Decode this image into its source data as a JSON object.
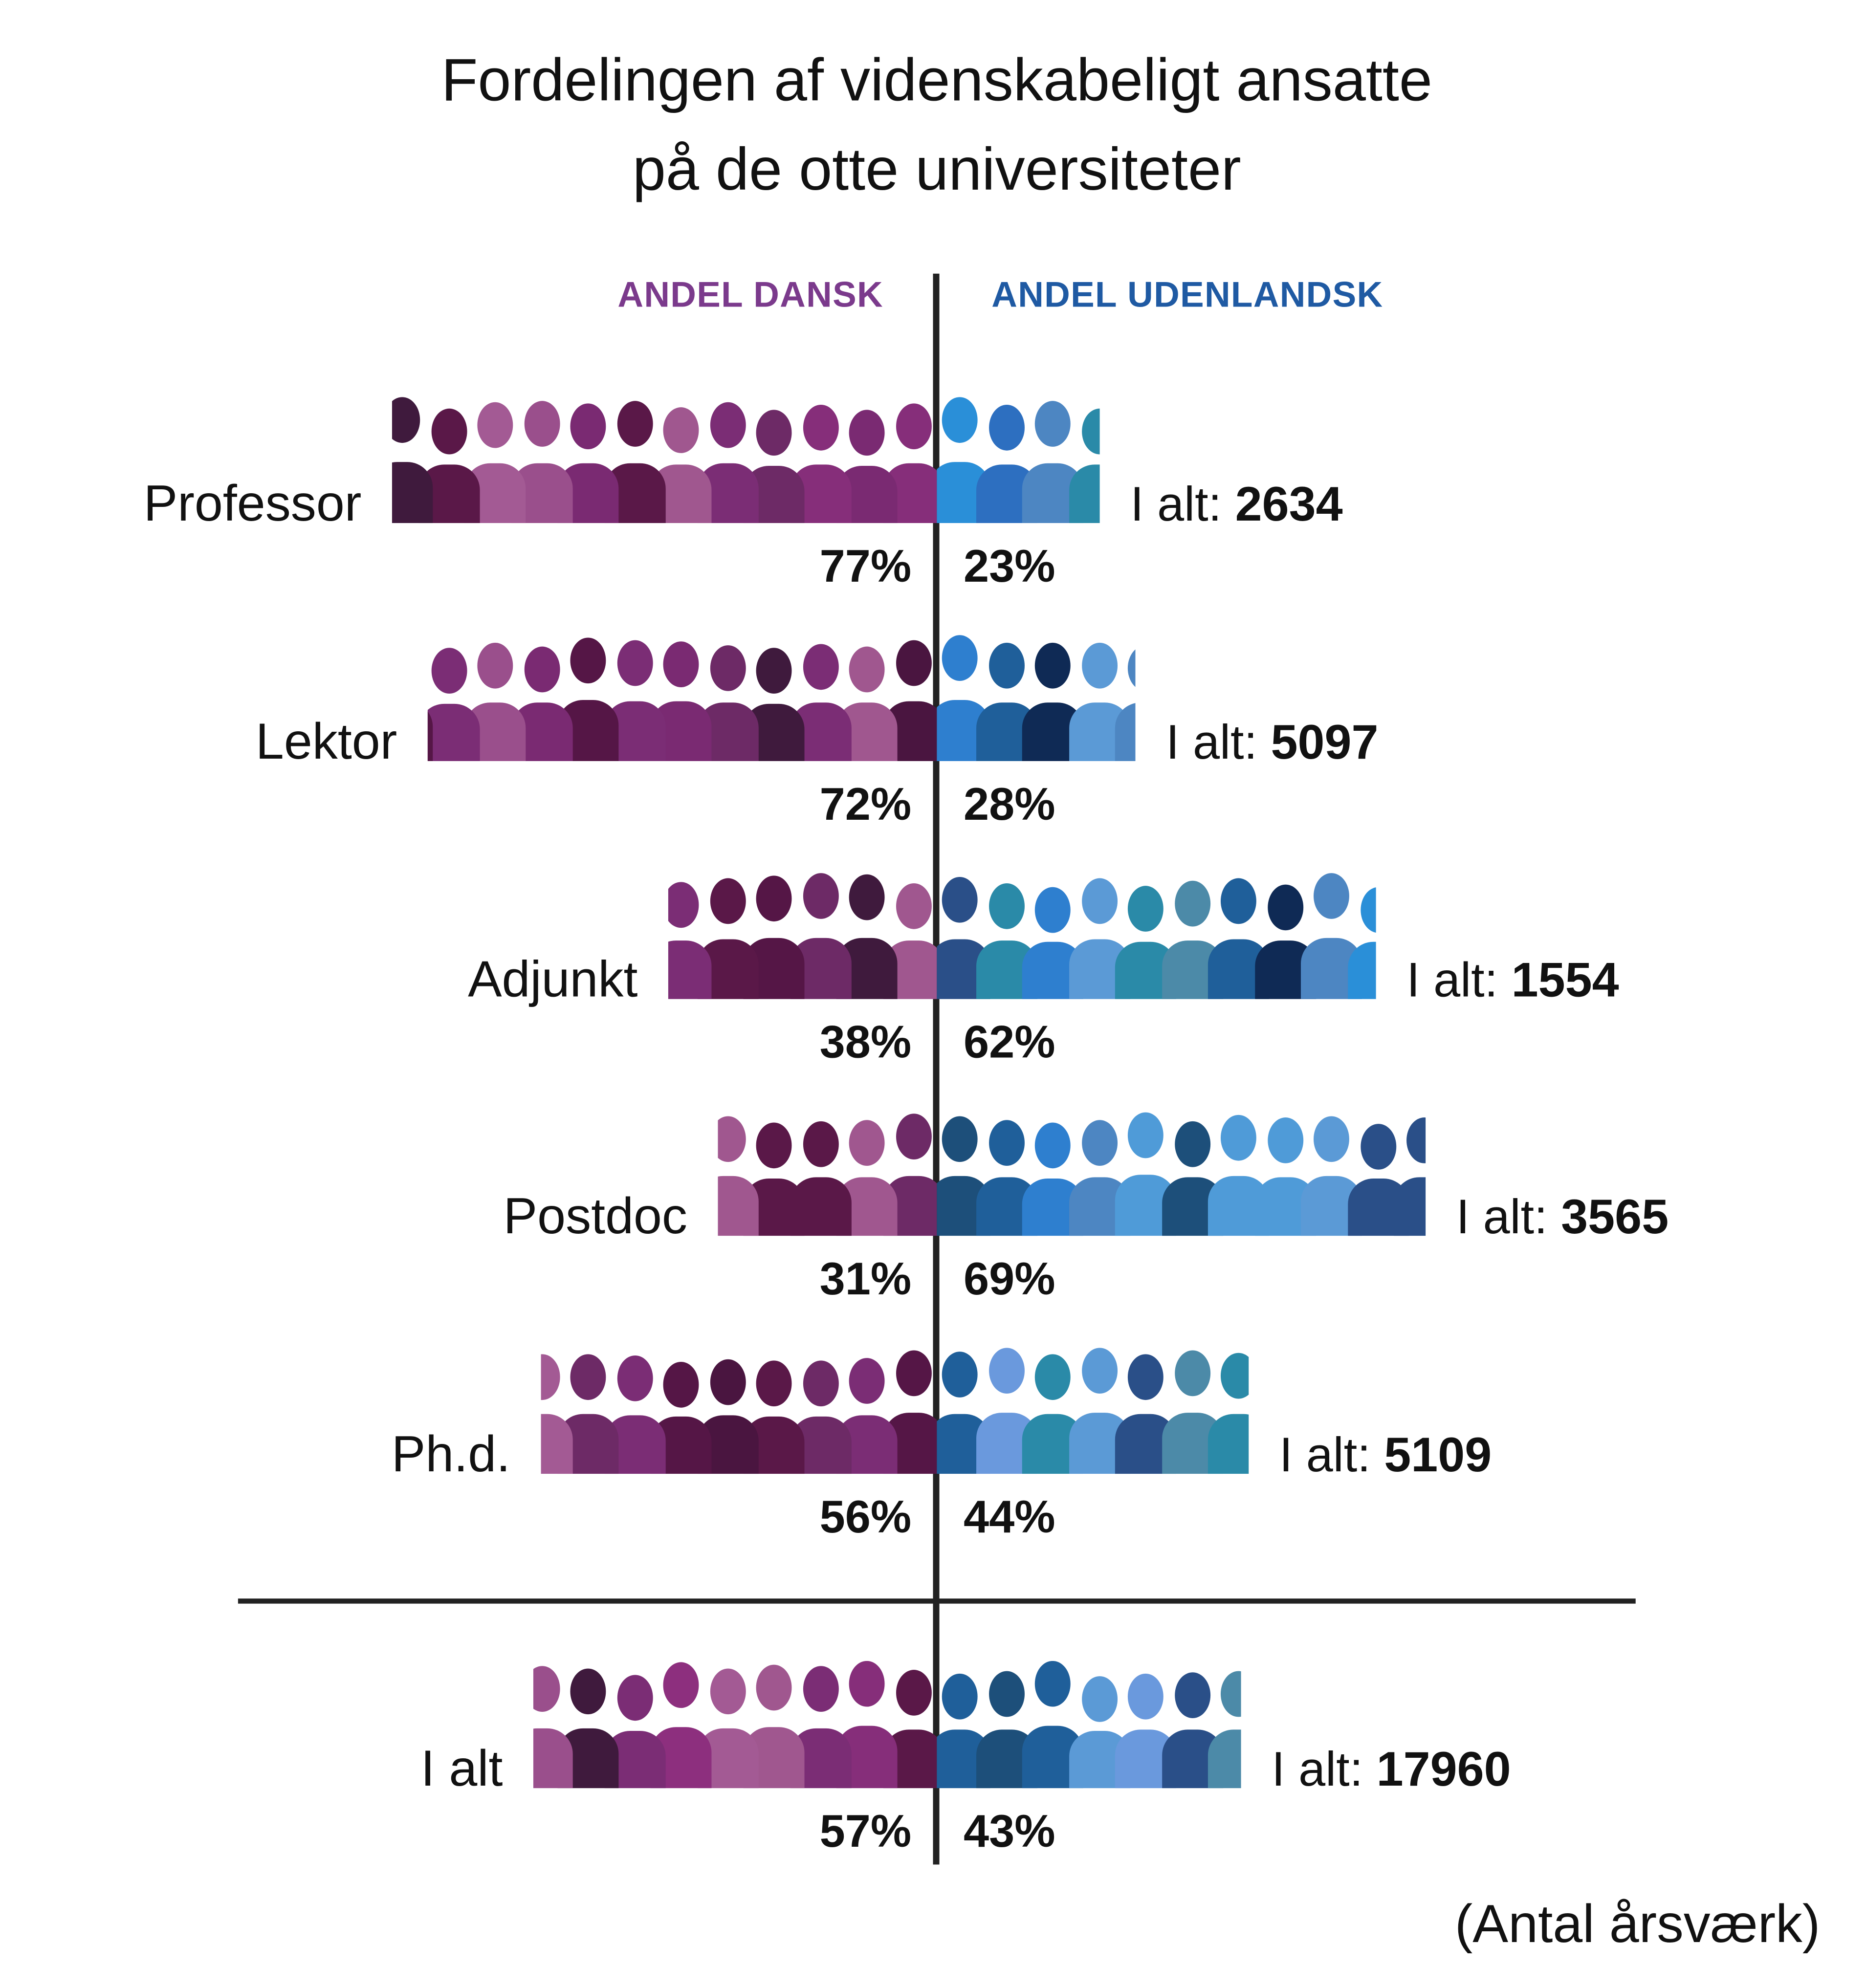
{
  "chart_data": {
    "type": "bar",
    "orientation": "diverging-horizontal-pictogram",
    "title": "Fordelingen af videnskabeligt ansatte på de otte universiteter",
    "title_lines": [
      "Fordelingen af videnskabeligt ansatte",
      "på de otte universiteter"
    ],
    "series": [
      {
        "name": "ANDEL DANSK",
        "color": "#7b3a8c",
        "values": [
          77,
          72,
          38,
          31,
          56,
          57
        ]
      },
      {
        "name": "ANDEL UDENLANDSK",
        "color": "#1f5aa3",
        "values": [
          23,
          28,
          62,
          69,
          44,
          43
        ]
      }
    ],
    "categories": [
      "Professor",
      "Lektor",
      "Adjunkt",
      "Postdoc",
      "Ph.d.",
      "I alt"
    ],
    "totals": [
      2634,
      5097,
      1554,
      3565,
      5109,
      17960
    ],
    "total_prefix": "I alt:",
    "unit_suffix": "%",
    "note": "(Antal årsværk)"
  }
}
